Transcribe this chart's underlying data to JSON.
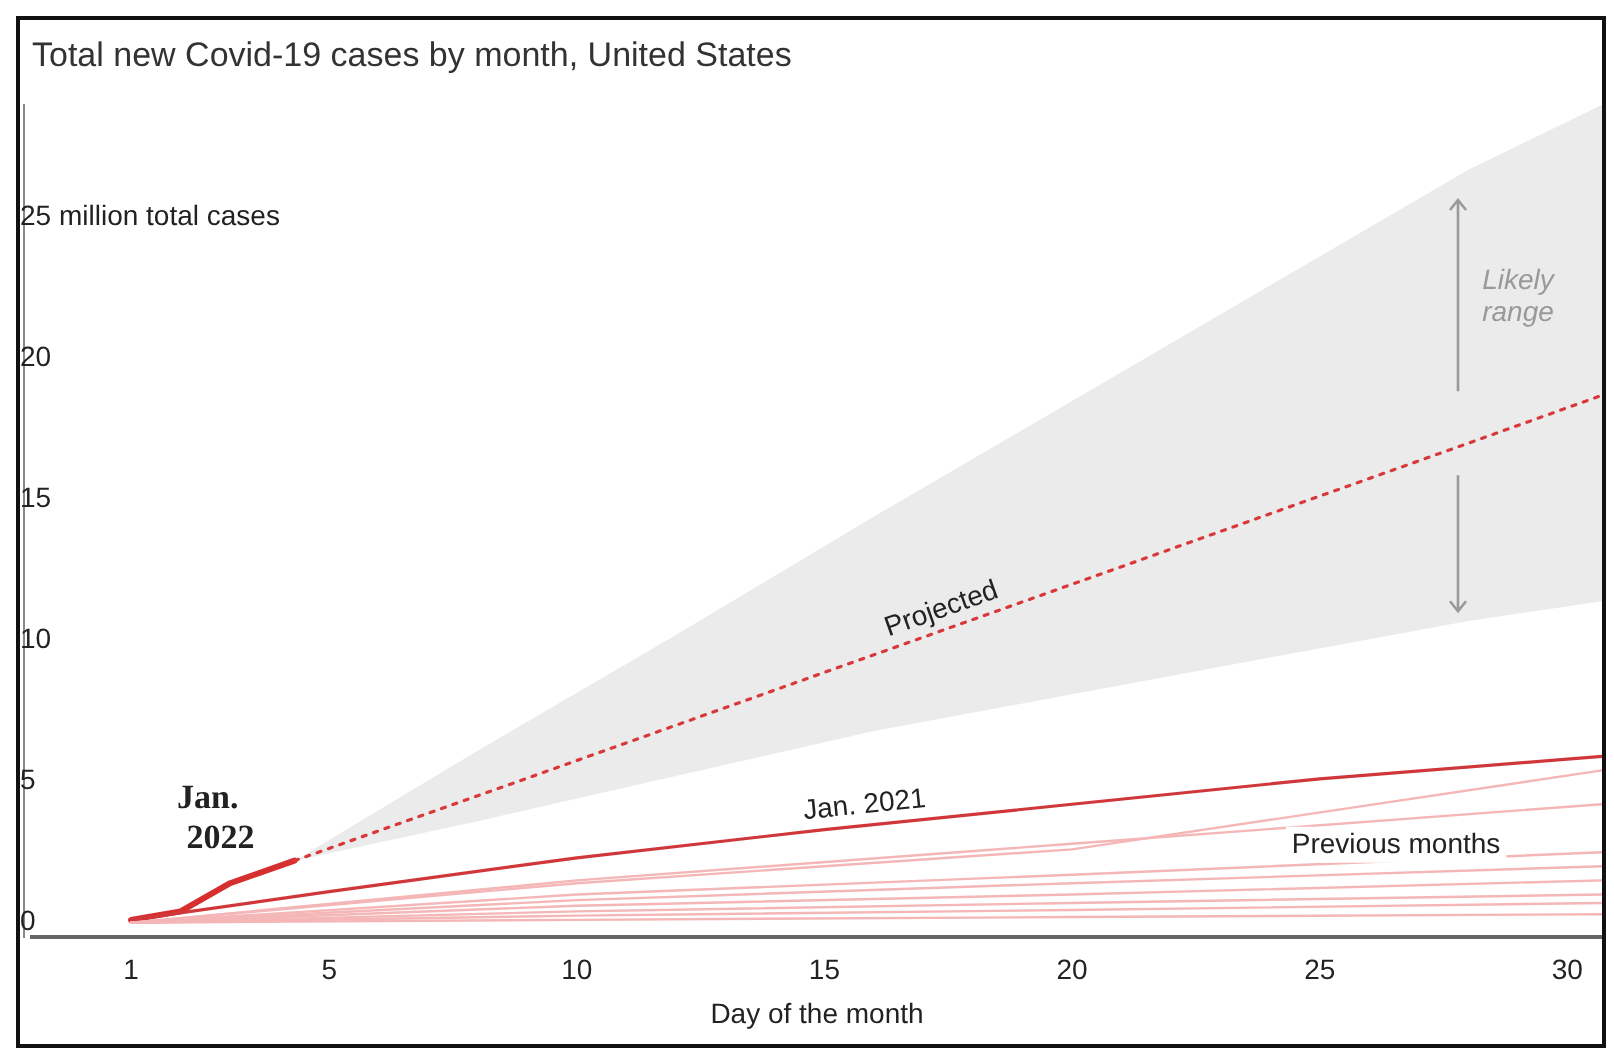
{
  "chart_data": {
    "type": "line",
    "title": "Total new Covid-19 cases by month, United States",
    "xlabel": "Day of the month",
    "xlim": [
      -1,
      30.7
    ],
    "xticks": [
      1,
      5,
      10,
      15,
      20,
      25,
      30
    ],
    "ylim": [
      -0.5,
      29
    ],
    "yticks": [
      0,
      5,
      10,
      15,
      20,
      {
        "value": 25,
        "label": "25 million total cases"
      }
    ],
    "grid": false,
    "legend": false,
    "marker": "none",
    "series": [
      {
        "color": "#f4b6b6",
        "x": [
          1,
          10,
          20,
          30.7
        ],
        "values": [
          0,
          1.4,
          2.6,
          5.4
        ]
      },
      {
        "color": "#f4b6b6",
        "x": [
          1,
          10,
          20,
          30.7
        ],
        "values": [
          0,
          1.5,
          2.8,
          4.2
        ]
      },
      {
        "color": "#f4b6b6",
        "x": [
          1,
          10,
          20,
          30.7
        ],
        "values": [
          0,
          1.0,
          1.7,
          2.5
        ]
      },
      {
        "color": "#f4b6b6",
        "x": [
          1,
          10,
          20,
          30.7
        ],
        "values": [
          0,
          0.8,
          1.4,
          2.0
        ]
      },
      {
        "color": "#f4b6b6",
        "x": [
          1,
          10,
          20,
          30.7
        ],
        "values": [
          0,
          0.6,
          1.0,
          1.5
        ]
      },
      {
        "color": "#f4b6b6",
        "x": [
          1,
          10,
          20,
          30.7
        ],
        "values": [
          0,
          0.4,
          0.7,
          1.0
        ]
      },
      {
        "color": "#f4b6b6",
        "x": [
          1,
          10,
          20,
          30.7
        ],
        "values": [
          0,
          0.25,
          0.45,
          0.7
        ]
      },
      {
        "color": "#f4b6b6",
        "x": [
          1,
          10,
          20,
          30.7
        ],
        "values": [
          0,
          0.1,
          0.2,
          0.3
        ]
      },
      {
        "name": "Jan. 2021",
        "color": "#d0373a",
        "x": [
          1,
          5,
          10,
          15,
          20,
          25,
          30,
          30.7
        ],
        "values": [
          0.1,
          1.1,
          2.3,
          3.3,
          4.2,
          5.1,
          5.8,
          5.9
        ]
      },
      {
        "name": "Projected",
        "color": "#d9383a",
        "line_style": "dotted",
        "x": [
          4.3,
          8,
          12,
          16,
          20,
          24,
          28,
          30.7
        ],
        "values": [
          2.2,
          4.5,
          7.0,
          9.5,
          12.0,
          14.5,
          17.0,
          18.7
        ],
        "lower": [
          2.2,
          3.6,
          5.2,
          6.8,
          8.1,
          9.4,
          10.7,
          11.4
        ],
        "upper": [
          2.2,
          6.1,
          10.2,
          14.4,
          18.5,
          22.6,
          26.7,
          29.0
        ]
      },
      {
        "name": "Jan. 2022",
        "color": "#d62f2f",
        "x": [
          1,
          2,
          3,
          4.3
        ],
        "values": [
          0.1,
          0.4,
          1.4,
          2.2
        ]
      }
    ],
    "annotations": [
      "Likely range",
      "Previous months"
    ]
  }
}
